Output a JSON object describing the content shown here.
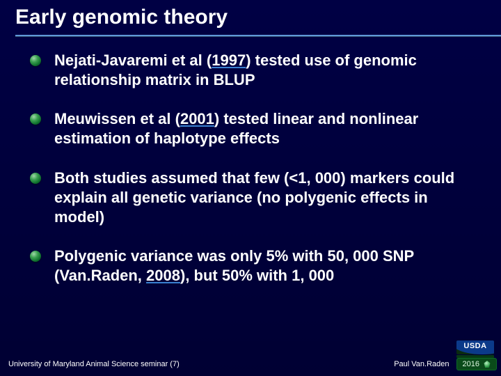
{
  "slide": {
    "title": "Early genomic theory",
    "background_gradient": [
      "#000044",
      "#000033"
    ],
    "rule_color_top": "#6098d8",
    "rule_color_bottom": "#305070",
    "bullets": [
      {
        "pre": "Nejati-Javaremi et al (",
        "year": "1997",
        "post": ") tested use of genomic relationship matrix in BLUP"
      },
      {
        "pre": "Meuwissen et al (",
        "year": "2001",
        "post": ") tested linear and nonlinear estimation of haplotype effects"
      },
      {
        "pre": "",
        "year": "",
        "post": "Both studies assumed that few (<1, 000) markers could explain all genetic variance (no polygenic effects in model)"
      },
      {
        "pre": "Polygenic variance was only 5% with 50, 000 SNP (Van.Raden, ",
        "year": "2008",
        "post": "), but 50% with 1, 000"
      }
    ],
    "bullet_text_fontsize": 22,
    "bullet_text_color": "#ffffff",
    "bullet_dot_gradient": [
      "#9fd8a8",
      "#3aa050",
      "#0b6b2a",
      "#053d17"
    ]
  },
  "footer": {
    "left": "University of Maryland Animal Science seminar (7)",
    "author": "Paul Van.Raden",
    "year_badge": "2016",
    "badge_colors": {
      "bg": "#0a4a1a",
      "border": "#0e6a28",
      "text": "#dff7e3"
    },
    "logo_text": "USDA"
  }
}
